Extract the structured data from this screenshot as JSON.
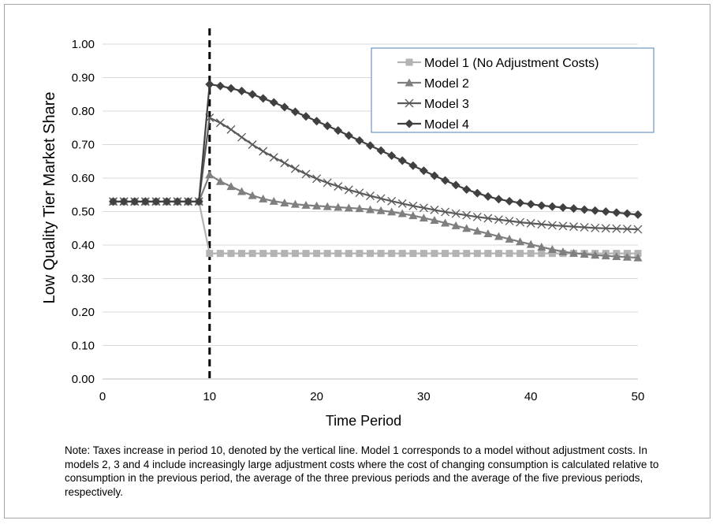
{
  "chart_data": {
    "type": "line",
    "title": "",
    "xlabel": "Time Period",
    "ylabel": "Low Quality Tier Market Share",
    "xlim": [
      0,
      50
    ],
    "ylim": [
      0,
      1.0
    ],
    "x_ticks": [
      0,
      10,
      20,
      30,
      40,
      50
    ],
    "y_ticks": [
      0.0,
      0.1,
      0.2,
      0.3,
      0.4,
      0.5,
      0.6,
      0.7,
      0.8,
      0.9,
      1.0
    ],
    "y_tick_labels": [
      "0.00",
      "0.10",
      "0.20",
      "0.30",
      "0.40",
      "0.50",
      "0.60",
      "0.70",
      "0.80",
      "0.90",
      "1.00"
    ],
    "x_tick_labels": [
      "0",
      "10",
      "20",
      "30",
      "40",
      "50"
    ],
    "grid": "horizontal",
    "vertical_line_x": 10,
    "legend_position": "top-right",
    "x": [
      1,
      2,
      3,
      4,
      5,
      6,
      7,
      8,
      9,
      10,
      11,
      12,
      13,
      14,
      15,
      16,
      17,
      18,
      19,
      20,
      21,
      22,
      23,
      24,
      25,
      26,
      27,
      28,
      29,
      30,
      31,
      32,
      33,
      34,
      35,
      36,
      37,
      38,
      39,
      40,
      41,
      42,
      43,
      44,
      45,
      46,
      47,
      48,
      49,
      50
    ],
    "series": [
      {
        "name": "Model 1 (No Adjustment Costs)",
        "color": "#b3b3b3",
        "marker": "square",
        "values": [
          0.53,
          0.53,
          0.53,
          0.53,
          0.53,
          0.53,
          0.53,
          0.53,
          0.53,
          0.375,
          0.375,
          0.375,
          0.375,
          0.375,
          0.375,
          0.375,
          0.375,
          0.375,
          0.375,
          0.375,
          0.375,
          0.375,
          0.375,
          0.375,
          0.375,
          0.375,
          0.375,
          0.375,
          0.375,
          0.375,
          0.375,
          0.375,
          0.375,
          0.375,
          0.375,
          0.375,
          0.375,
          0.375,
          0.375,
          0.375,
          0.375,
          0.375,
          0.375,
          0.375,
          0.375,
          0.375,
          0.375,
          0.375,
          0.375,
          0.375
        ]
      },
      {
        "name": "Model 2",
        "color": "#7f7f7f",
        "marker": "triangle",
        "values": [
          0.53,
          0.53,
          0.53,
          0.53,
          0.53,
          0.53,
          0.53,
          0.53,
          0.53,
          0.61,
          0.59,
          0.575,
          0.56,
          0.548,
          0.538,
          0.531,
          0.526,
          0.522,
          0.519,
          0.517,
          0.515,
          0.513,
          0.511,
          0.509,
          0.506,
          0.503,
          0.499,
          0.494,
          0.488,
          0.481,
          0.474,
          0.466,
          0.458,
          0.45,
          0.442,
          0.434,
          0.426,
          0.418,
          0.41,
          0.402,
          0.394,
          0.387,
          0.38,
          0.376,
          0.373,
          0.37,
          0.368,
          0.366,
          0.364,
          0.362
        ]
      },
      {
        "name": "Model 3",
        "color": "#595959",
        "marker": "x",
        "values": [
          0.53,
          0.53,
          0.53,
          0.53,
          0.53,
          0.53,
          0.53,
          0.53,
          0.53,
          0.78,
          0.765,
          0.745,
          0.722,
          0.7,
          0.68,
          0.662,
          0.645,
          0.628,
          0.612,
          0.598,
          0.586,
          0.575,
          0.565,
          0.556,
          0.547,
          0.539,
          0.531,
          0.524,
          0.517,
          0.511,
          0.505,
          0.499,
          0.494,
          0.489,
          0.484,
          0.48,
          0.476,
          0.472,
          0.468,
          0.465,
          0.462,
          0.459,
          0.457,
          0.455,
          0.453,
          0.451,
          0.45,
          0.449,
          0.448,
          0.447
        ]
      },
      {
        "name": "Model 4",
        "color": "#404040",
        "marker": "diamond",
        "values": [
          0.53,
          0.53,
          0.53,
          0.53,
          0.53,
          0.53,
          0.53,
          0.53,
          0.53,
          0.88,
          0.875,
          0.868,
          0.86,
          0.85,
          0.838,
          0.826,
          0.812,
          0.798,
          0.784,
          0.77,
          0.756,
          0.742,
          0.727,
          0.712,
          0.697,
          0.682,
          0.667,
          0.652,
          0.637,
          0.622,
          0.607,
          0.593,
          0.579,
          0.566,
          0.555,
          0.545,
          0.537,
          0.531,
          0.526,
          0.522,
          0.518,
          0.515,
          0.512,
          0.509,
          0.506,
          0.503,
          0.5,
          0.497,
          0.494,
          0.491
        ]
      }
    ]
  },
  "note": "Note: Taxes increase in period 10, denoted by the vertical line. Model 1 corresponds to a model without adjustment costs.  In models 2, 3 and 4 include increasingly large adjustment costs where the cost of changing consumption is calculated relative to consumption in the previous period, the average of the three previous periods and the average of the five previous periods, respectively."
}
